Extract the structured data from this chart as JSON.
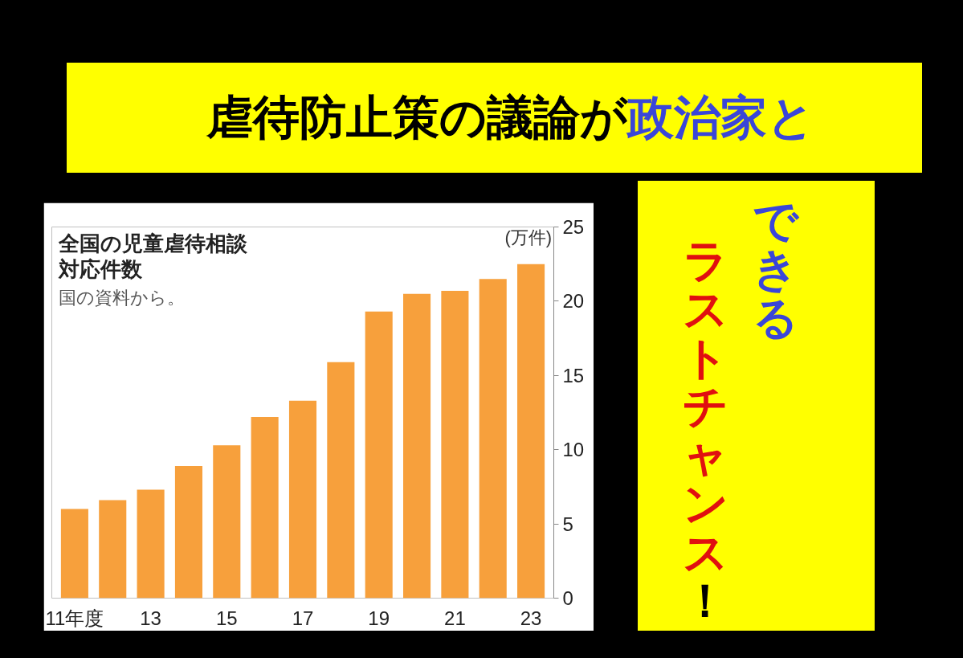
{
  "chart_data": {
    "type": "bar",
    "title": "全国の児童虐待相談対応件数",
    "ylabel": "(万件)",
    "annotations": [
      "国の資料から。",
      "虐待防止策の議論が",
      "政治家と",
      "できる",
      "ラストチャンス",
      "！"
    ],
    "categories": [
      "11年度",
      null,
      "13",
      null,
      "15",
      null,
      "17",
      null,
      "19",
      null,
      "21",
      null,
      "23"
    ],
    "values": [
      6.0,
      6.6,
      7.3,
      8.9,
      10.3,
      12.2,
      13.3,
      15.9,
      19.3,
      20.5,
      20.7,
      21.5,
      22.5
    ],
    "color": "#f7a03c",
    "ylim": [
      0,
      25
    ],
    "yticks": [
      0,
      5,
      10,
      15,
      20,
      25
    ],
    "grid": false
  }
}
